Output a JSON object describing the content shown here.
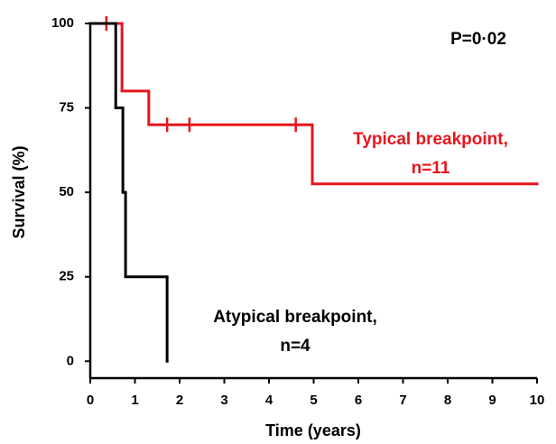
{
  "chart_data": {
    "type": "step",
    "x_label": "Time (years)",
    "y_label": "Survival (%)",
    "xlim": [
      0,
      10
    ],
    "xticks": [
      0,
      1,
      2,
      3,
      4,
      5,
      6,
      7,
      8,
      9,
      10
    ],
    "ylim": [
      -5,
      100
    ],
    "yticks": [
      0,
      25,
      50,
      75,
      100
    ],
    "annotation": "P=0·02",
    "series": [
      {
        "label_lines": [
          "Typical breakpoint,",
          "n=11"
        ],
        "color": "#e8141c",
        "x": [
          0,
          0.71,
          1.31,
          4.97,
          10
        ],
        "values": [
          100,
          80,
          70,
          52.5,
          52.5
        ],
        "censored": {
          "x": [
            0.36,
            1.72,
            2.22,
            4.6
          ],
          "values": [
            100,
            70,
            70,
            70
          ]
        }
      },
      {
        "label_lines": [
          "Atypical breakpoint,",
          "n=4"
        ],
        "color": "#000000",
        "x": [
          0,
          0.57,
          0.73,
          0.79,
          1.72
        ],
        "values": [
          100,
          75,
          50,
          25,
          0
        ],
        "censored": {
          "x": [],
          "values": []
        }
      }
    ]
  }
}
